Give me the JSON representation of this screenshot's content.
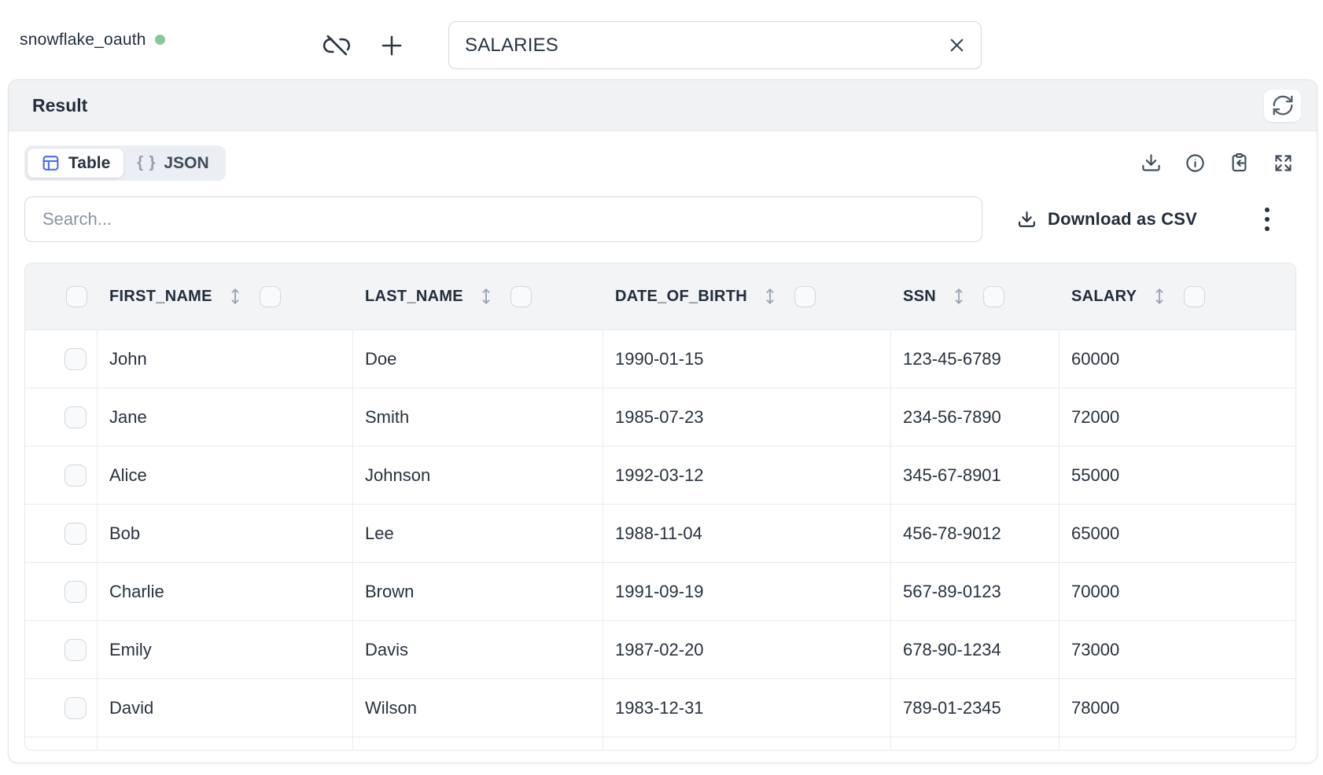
{
  "topbar": {
    "connection_name": "snowflake_oauth",
    "query_value": "SALARIES"
  },
  "result": {
    "title": "Result",
    "tabs": {
      "table_label": "Table",
      "json_icon_text": "{ }",
      "json_label": "JSON"
    },
    "toolbar": {
      "search_placeholder": "Search...",
      "download_csv_label": "Download as CSV"
    },
    "table": {
      "columns": [
        "FIRST_NAME",
        "LAST_NAME",
        "DATE_OF_BIRTH",
        "SSN",
        "SALARY"
      ],
      "rows": [
        [
          "John",
          "Doe",
          "1990-01-15",
          "123-45-6789",
          "60000"
        ],
        [
          "Jane",
          "Smith",
          "1985-07-23",
          "234-56-7890",
          "72000"
        ],
        [
          "Alice",
          "Johnson",
          "1992-03-12",
          "345-67-8901",
          "55000"
        ],
        [
          "Bob",
          "Lee",
          "1988-11-04",
          "456-78-9012",
          "65000"
        ],
        [
          "Charlie",
          "Brown",
          "1991-09-19",
          "567-89-0123",
          "70000"
        ],
        [
          "Emily",
          "Davis",
          "1987-02-20",
          "678-90-1234",
          "73000"
        ],
        [
          "David",
          "Wilson",
          "1983-12-31",
          "789-01-2345",
          "78000"
        ]
      ]
    }
  },
  "colors": {
    "status_green": "#87c999",
    "accent_blue": "#4a6bf5"
  }
}
